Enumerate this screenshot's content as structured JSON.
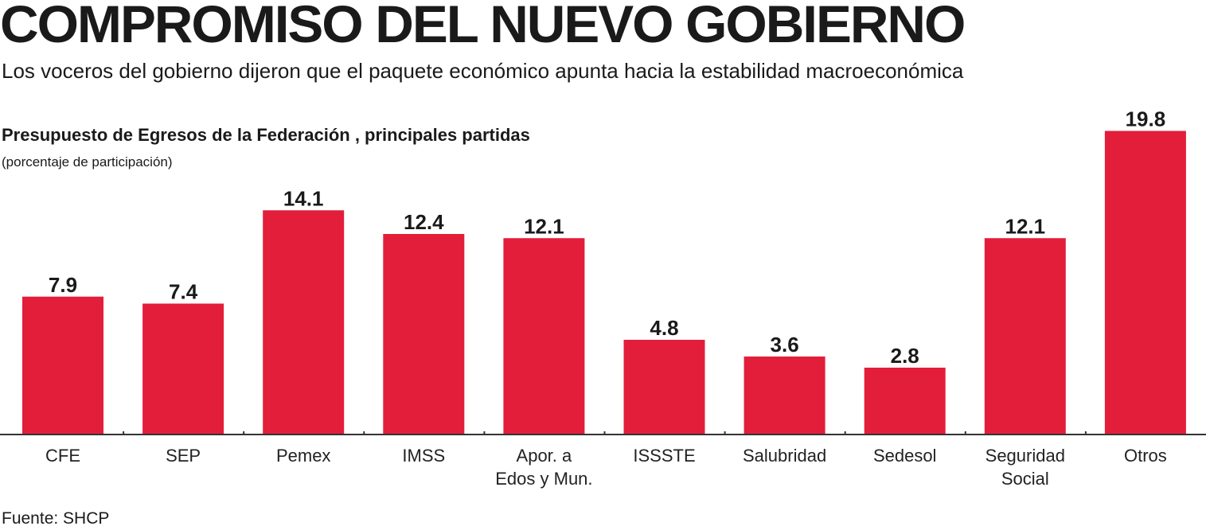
{
  "header": {
    "title": "COMPROMISO DEL NUEVO GOBIERNO",
    "subtitle": "Los voceros del gobierno dijeron que el paquete económico apunta hacia la estabilidad macroeconómica"
  },
  "footer": {
    "source": "Fuente: SHCP"
  },
  "chart_data": {
    "type": "bar",
    "title": "Presupuesto de Egresos de la Federación , principales partidas",
    "subtitle": "(porcentaje de participación)",
    "categories": [
      [
        "CFE"
      ],
      [
        "SEP"
      ],
      [
        "Pemex"
      ],
      [
        "IMSS"
      ],
      [
        "Apor. a",
        "Edos y Mun."
      ],
      [
        "ISSSTE"
      ],
      [
        "Salubridad"
      ],
      [
        "Sedesol"
      ],
      [
        "Seguridad",
        "Social"
      ],
      [
        "Otros"
      ]
    ],
    "values": [
      7.9,
      7.4,
      14.1,
      12.4,
      12.1,
      4.8,
      3.6,
      2.8,
      12.1,
      19.8
    ],
    "value_labels": [
      "7.9",
      "7.4",
      "14.1",
      "12.4",
      "12.1",
      "4.8",
      "3.6",
      "2.8",
      "12.1",
      "19.8"
    ],
    "ylim": [
      -2,
      20
    ],
    "grid": false,
    "bar_color": "#e31e3a",
    "axis_color": "#333333"
  }
}
